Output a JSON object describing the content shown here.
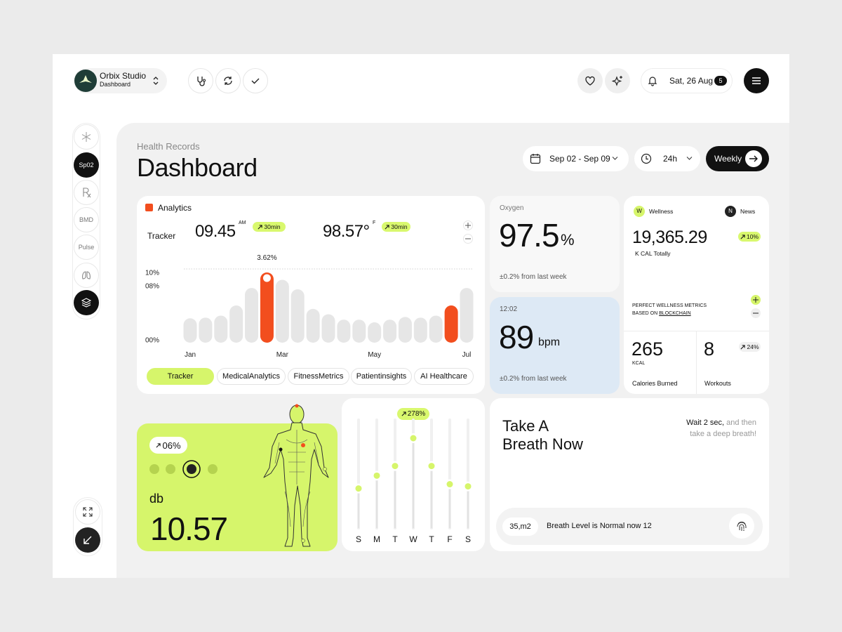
{
  "header": {
    "brand": {
      "name": "Orbix Studio",
      "subtitle": "Dashboard"
    },
    "date": "Sat, 26 Aug",
    "notifications": "5"
  },
  "sidebar": {
    "items": [
      "Sp02",
      "BMD",
      "Pulse"
    ]
  },
  "page": {
    "eyebrow": "Health Records",
    "title": "Dashboard"
  },
  "filters": {
    "date_range": "Sep 02 - Sep 09",
    "period": "24h",
    "view": "Weekly"
  },
  "analytics": {
    "title": "Analytics",
    "tracker_label": "Tracker",
    "metrics": [
      {
        "value": "09.45",
        "suffix": "AM",
        "badge": "30min"
      },
      {
        "value": "98.57°",
        "suffix": "F",
        "badge": "30min"
      }
    ],
    "chart": {
      "type": "bar",
      "annotation": "3.62%",
      "categories": [
        "Jan",
        null,
        null,
        null,
        null,
        null,
        "Mar",
        null,
        null,
        null,
        null,
        null,
        "May",
        null,
        null,
        null,
        null,
        null,
        "Jul"
      ],
      "values": [
        3.2,
        3.3,
        3.6,
        5.1,
        7.7,
        10,
        8.9,
        7.5,
        4.6,
        3.8,
        3.0,
        3.0,
        2.6,
        3.0,
        3.4,
        3.3,
        3.6,
        5.1,
        7.7
      ],
      "color": "#e6e6e6",
      "highlight_color": "#f24e1e",
      "highlighted": [
        5,
        17
      ],
      "ylim": [
        0,
        10
      ],
      "yticks": [
        {
          "value": 0,
          "label": "00%"
        },
        {
          "value": 8,
          "label": "08%"
        },
        {
          "value": 10,
          "label": "10%"
        }
      ]
    },
    "tabs": [
      "Tracker",
      "MedicalAnalytics",
      "FitnessMetrics",
      "Patientinsights",
      "AI Healthcare"
    ]
  },
  "oxygen": {
    "label": "Oxygen",
    "value": "97.5",
    "unit": "%",
    "change": "±0.2% from last week"
  },
  "heart": {
    "time": "12:02",
    "value": "89",
    "unit": "bpm",
    "change": "±0.2% from last week"
  },
  "wellness": {
    "tabs": [
      {
        "badge": "W",
        "label": "Wellness"
      },
      {
        "badge": "N",
        "label": "News"
      }
    ],
    "total": "19,365.29",
    "total_label": "K CAL Totally",
    "badge": "10%",
    "note": "PERFECT WELLNESS METRICS",
    "note_prefix": "BASED ON",
    "note_link": "BLOCKCHAIN",
    "calories": {
      "value": "265",
      "unit": "KCAL",
      "label": "Calories Burned"
    },
    "workouts": {
      "value": "8",
      "badge": "24%",
      "label": "Workouts"
    }
  },
  "sound": {
    "badge": "06%",
    "unit": "db",
    "value": "10.57"
  },
  "weekly": {
    "badge": "278%",
    "chart": {
      "type": "lollipop",
      "color": "#d6f56b",
      "categories": [
        "S",
        "M",
        "T",
        "W",
        "T",
        "F",
        "S"
      ],
      "values": [
        37,
        49,
        58,
        84,
        58,
        41,
        39
      ]
    }
  },
  "breath": {
    "title": [
      "Take A",
      "Breath Now"
    ],
    "hint_strong": "Wait 2 sec,",
    "hint": "and then take a deep breath!",
    "area": "35,m2",
    "status": "Breath Level is Normal now 12"
  }
}
